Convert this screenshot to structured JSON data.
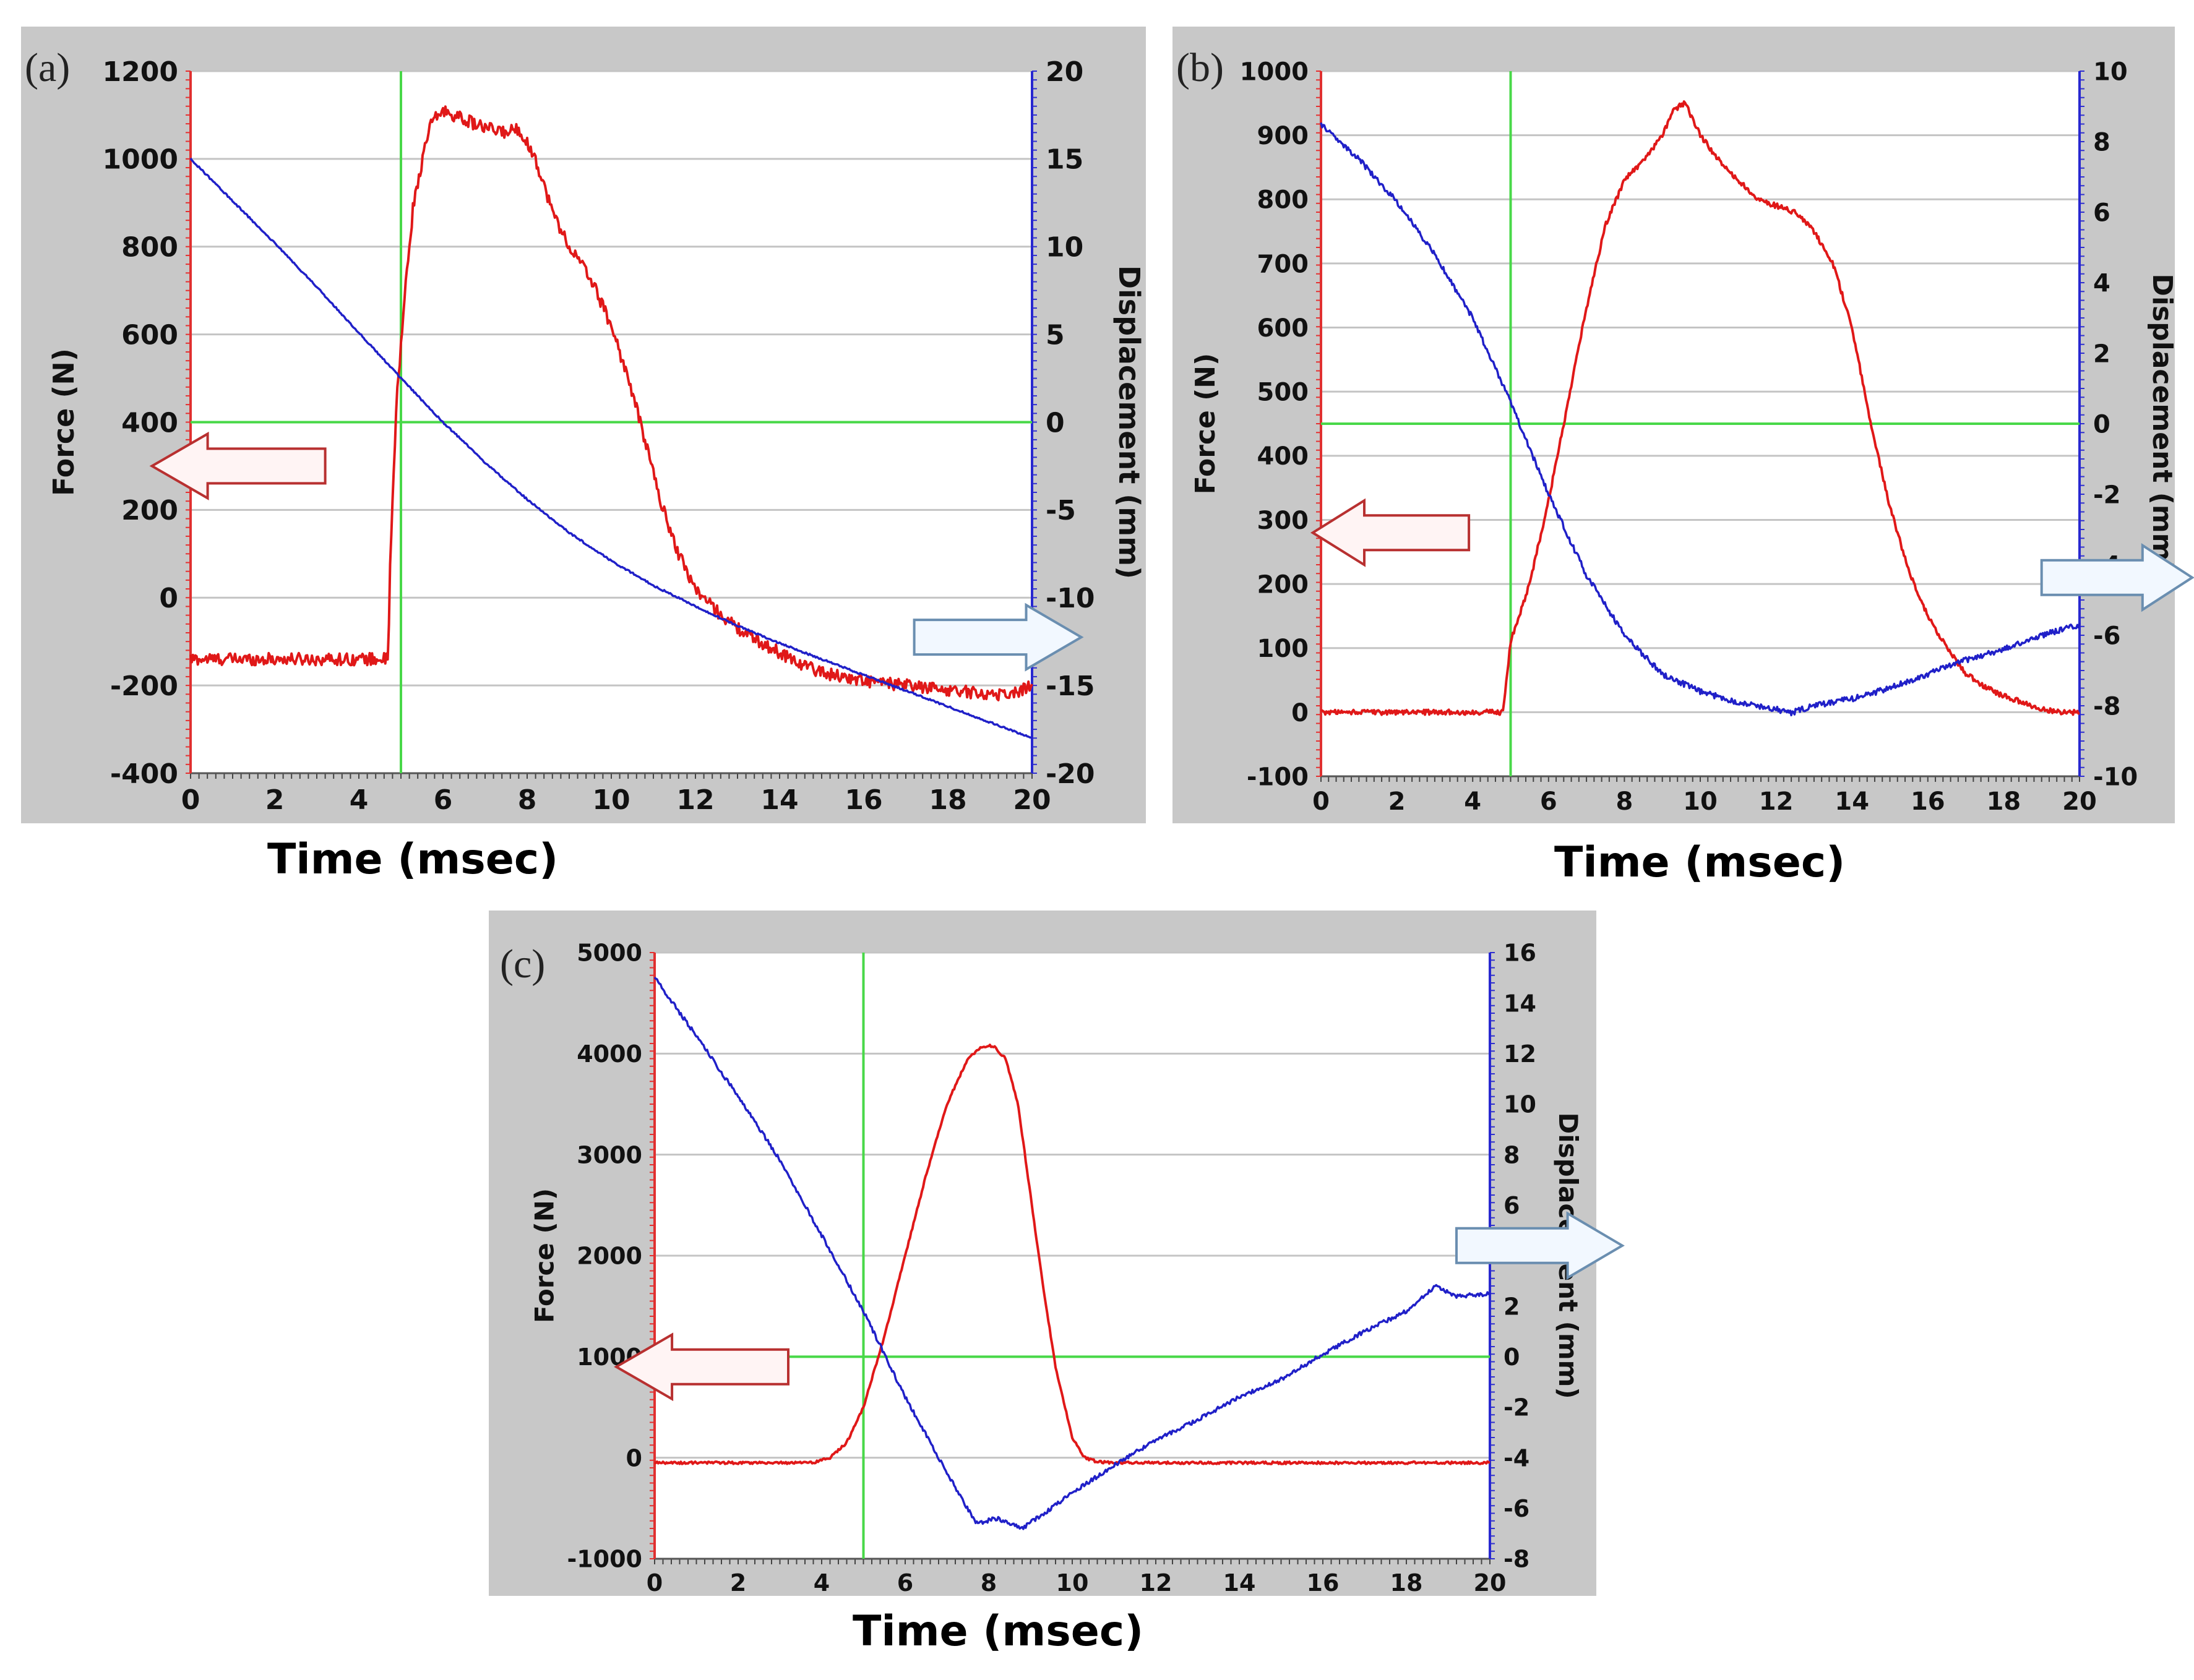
{
  "chart_data": [
    {
      "type": "line",
      "panel_label": "(a)",
      "xlabel": "Time (msec)",
      "ylabel_left": "Force (N)",
      "ylabel_right": "Displacement (mm)",
      "xlim": [
        0,
        20
      ],
      "xticks": [
        0,
        2,
        4,
        6,
        8,
        10,
        12,
        14,
        16,
        18,
        20
      ],
      "ylim_left": [
        -400,
        1200
      ],
      "yticks_left": [
        -400,
        -200,
        0,
        200,
        400,
        600,
        800,
        1000,
        1200
      ],
      "ylim_right": [
        -20,
        20
      ],
      "yticks_right": [
        -20,
        -15,
        -10,
        -5,
        0,
        5,
        10,
        15,
        20
      ],
      "crosshair": {
        "x": 5,
        "y_left": 400
      },
      "arrows": [
        {
          "points_to": "left-axis",
          "x": 3.2,
          "y_left": 300
        },
        {
          "points_to": "right-axis",
          "x": 17.2,
          "y_left": -90
        }
      ],
      "series": [
        {
          "name": "Force",
          "axis": "left",
          "color": "#e01818",
          "noise": 14,
          "x": [
            0,
            4.7,
            4.75,
            4.9,
            5.1,
            5.3,
            5.7,
            6,
            6.5,
            7,
            7.5,
            7.8,
            8.2,
            8.6,
            9,
            9.5,
            10,
            10.4,
            10.8,
            11.2,
            11.6,
            12,
            12.5,
            13,
            13.5,
            14,
            14.5,
            15,
            16,
            17,
            18,
            19,
            19.5,
            20
          ],
          "values": [
            -140,
            -140,
            100,
            450,
            700,
            900,
            1080,
            1110,
            1090,
            1070,
            1060,
            1070,
            1000,
            880,
            800,
            730,
            620,
            500,
            360,
            210,
            100,
            20,
            -30,
            -70,
            -100,
            -125,
            -150,
            -170,
            -190,
            -200,
            -210,
            -220,
            -220,
            -200
          ]
        },
        {
          "name": "Displacement",
          "axis": "right",
          "color": "#2020c8",
          "noise": 0.05,
          "x": [
            0,
            1,
            2,
            3,
            4,
            5,
            6,
            7,
            8,
            9,
            10,
            11,
            12,
            13,
            14,
            15,
            16,
            17,
            18,
            19,
            20
          ],
          "values": [
            15,
            12.6,
            10.2,
            7.7,
            5.1,
            2.5,
            0,
            -2.3,
            -4.4,
            -6.3,
            -7.9,
            -9.3,
            -10.5,
            -11.6,
            -12.6,
            -13.5,
            -14.4,
            -15.3,
            -16.2,
            -17.1,
            -18
          ]
        }
      ]
    },
    {
      "type": "line",
      "panel_label": "(b)",
      "xlabel": "Time (msec)",
      "ylabel_left": "Force (N)",
      "ylabel_right": "Displacement (mm)",
      "xlim": [
        0,
        20
      ],
      "xticks": [
        0,
        2,
        4,
        6,
        8,
        10,
        12,
        14,
        16,
        18,
        20
      ],
      "ylim_left": [
        -100,
        1000
      ],
      "yticks_left": [
        -100,
        0,
        100,
        200,
        300,
        400,
        500,
        600,
        700,
        800,
        900,
        1000
      ],
      "ylim_right": [
        -10,
        10
      ],
      "yticks_right": [
        -10,
        -8,
        -6,
        -4,
        -2,
        0,
        2,
        4,
        6,
        8,
        10
      ],
      "crosshair": {
        "x": 5,
        "y_left": 450
      },
      "arrows": [
        {
          "points_to": "left-axis",
          "x": 3.9,
          "y_left": 280
        },
        {
          "points_to": "right-axis",
          "x": 19,
          "y_left": 210
        }
      ],
      "series": [
        {
          "name": "Force",
          "axis": "left",
          "color": "#e01818",
          "noise": 4,
          "x": [
            0,
            4.8,
            5,
            5.5,
            6,
            6.5,
            7,
            7.5,
            8,
            8.5,
            9,
            9.3,
            9.6,
            10,
            10.5,
            11,
            11.5,
            12,
            12.5,
            13,
            13.5,
            14,
            14.5,
            15,
            15.5,
            16,
            16.5,
            17,
            17.5,
            18,
            18.5,
            19,
            19.5,
            20
          ],
          "values": [
            0,
            0,
            110,
            200,
            330,
            480,
            630,
            760,
            830,
            860,
            900,
            940,
            950,
            900,
            860,
            830,
            800,
            790,
            780,
            750,
            700,
            600,
            450,
            320,
            220,
            150,
            100,
            60,
            40,
            25,
            15,
            5,
            0,
            0
          ]
        },
        {
          "name": "Displacement",
          "axis": "right",
          "color": "#2020c8",
          "noise": 0.08,
          "x": [
            0,
            1,
            2,
            3,
            4,
            5,
            6,
            7,
            8,
            9,
            10,
            11,
            12,
            12.4,
            13,
            14,
            15,
            16,
            17,
            18,
            19,
            20
          ],
          "values": [
            8.5,
            7.5,
            6.3,
            4.8,
            3,
            0.6,
            -2,
            -4.3,
            -6,
            -7.1,
            -7.6,
            -7.9,
            -8.1,
            -8.2,
            -8.0,
            -7.8,
            -7.5,
            -7.1,
            -6.7,
            -6.4,
            -6.0,
            -5.7
          ]
        }
      ]
    },
    {
      "type": "line",
      "panel_label": "(c)",
      "xlabel": "Time (msec)",
      "ylabel_left": "Force (N)",
      "ylabel_right": "Displacement (mm)",
      "xlim": [
        0,
        20
      ],
      "xticks": [
        0,
        2,
        4,
        6,
        8,
        10,
        12,
        14,
        16,
        18,
        20
      ],
      "ylim_left": [
        -1000,
        5000
      ],
      "yticks_left": [
        -1000,
        0,
        1000,
        2000,
        3000,
        4000,
        5000
      ],
      "ylim_right": [
        -8,
        16
      ],
      "yticks_right": [
        -8,
        -6,
        -4,
        -2,
        0,
        2,
        4,
        6,
        8,
        10,
        12,
        14,
        16
      ],
      "crosshair": {
        "x": 5,
        "y_left": 1000
      },
      "arrows": [
        {
          "points_to": "left-axis",
          "x": 3.2,
          "y_left": 900
        },
        {
          "points_to": "right-axis",
          "x": 19.2,
          "y_left": 2100
        }
      ],
      "series": [
        {
          "name": "Force",
          "axis": "left",
          "color": "#e01818",
          "noise": 12,
          "x": [
            0,
            3.8,
            4.2,
            4.6,
            5,
            5.5,
            6,
            6.5,
            7,
            7.5,
            7.8,
            8.1,
            8.4,
            8.7,
            9,
            9.3,
            9.6,
            10,
            10.3,
            10.6,
            11,
            14,
            17,
            20
          ],
          "values": [
            -50,
            -50,
            0,
            150,
            500,
            1200,
            2000,
            2800,
            3500,
            3950,
            4060,
            4080,
            3950,
            3500,
            2600,
            1700,
            900,
            200,
            0,
            -40,
            -50,
            -50,
            -50,
            -50
          ]
        },
        {
          "name": "Displacement",
          "axis": "right",
          "color": "#2020c8",
          "noise": 0.08,
          "x": [
            0,
            1,
            2,
            3,
            4,
            5,
            6,
            7,
            7.7,
            8.2,
            8.8,
            9.5,
            10,
            11,
            12,
            13,
            14,
            15,
            16,
            17,
            18,
            18.7,
            19.2,
            20
          ],
          "values": [
            15,
            12.7,
            10.3,
            7.8,
            4.8,
            1.8,
            -1.6,
            -4.6,
            -6.6,
            -6.4,
            -6.8,
            -6,
            -5.4,
            -4.3,
            -3.3,
            -2.5,
            -1.6,
            -0.9,
            0.1,
            1,
            1.8,
            2.8,
            2.4,
            2.5
          ]
        }
      ]
    }
  ]
}
